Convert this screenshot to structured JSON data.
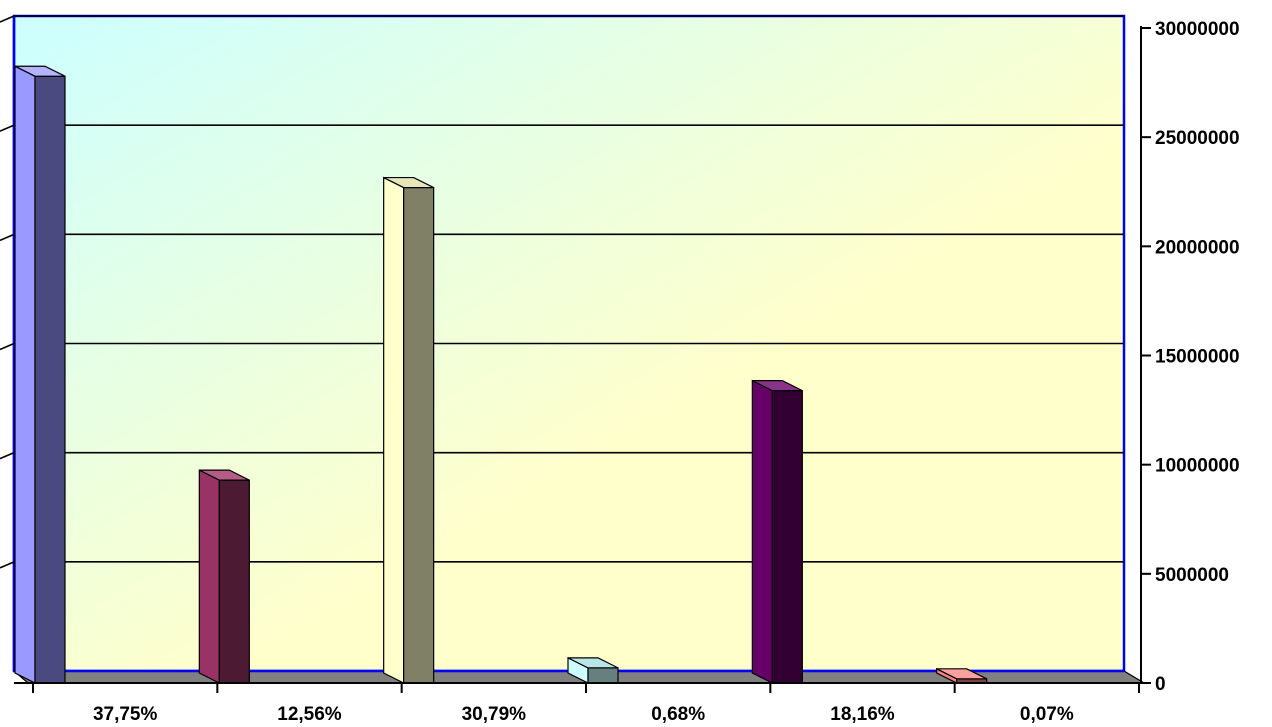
{
  "chart_data": {
    "type": "bar",
    "title": "",
    "xlabel": "",
    "ylabel": "",
    "categories": [
      "37,75%",
      "12,56%",
      "30,79%",
      "0,68%",
      "18,16%",
      "0,07%"
    ],
    "values": [
      27700000,
      9200000,
      22600000,
      600000,
      13300000,
      100000
    ],
    "ylim": [
      0,
      30000000
    ],
    "yticks": [
      "0",
      "5000000",
      "10000000",
      "15000000",
      "20000000",
      "25000000",
      "30000000"
    ],
    "y_axis_position": "right",
    "grid": true,
    "legend": "none",
    "bar_colors": [
      {
        "front": "#9999ff",
        "side": "#4a4a80",
        "top": "#b3b3ff"
      },
      {
        "front": "#993366",
        "side": "#4d1a33",
        "top": "#b35c85"
      },
      {
        "front": "#ffffcc",
        "side": "#808066",
        "top": "#e6e6b8"
      },
      {
        "front": "#ccffff",
        "side": "#668080",
        "top": "#b8e6e6"
      },
      {
        "front": "#660066",
        "side": "#330033",
        "top": "#8a338a"
      },
      {
        "front": "#ff8080",
        "side": "#804040",
        "top": "#ffa0a0"
      }
    ],
    "plot_background": {
      "top_left": "#ccffff",
      "bottom_right": "#ffffcc"
    },
    "floor_color": "#808080",
    "border_color": "#0000ff"
  }
}
